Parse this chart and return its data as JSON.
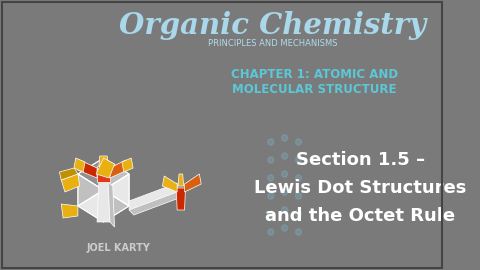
{
  "bg_color": "#7a7a7a",
  "title": "Organic Chemistry",
  "subtitle": "PRINCIPLES AND MECHANISMS",
  "chapter": "CHAPTER 1: ATOMIC AND\nMOLECULAR STRUCTURE",
  "section": "Section 1.5 –",
  "section_line2": "Lewis Dot Structures",
  "section_line3": "and the Octet Rule",
  "author": "JOEL KARTY",
  "title_color": "#a8d8ea",
  "subtitle_color": "#b0dcea",
  "chapter_color": "#5bc8d8",
  "section_color": "#ffffff",
  "author_color": "#cccccc",
  "dots_color": "#7ab8c8",
  "white_c": "#e8e8e8",
  "lgray_c": "#c0c0c0",
  "dgray_c": "#909090",
  "red_c": "#cc2800",
  "ored_c": "#e03818",
  "orange_c": "#d86010",
  "yellow_c": "#e8b010",
  "dyel_c": "#c09000"
}
